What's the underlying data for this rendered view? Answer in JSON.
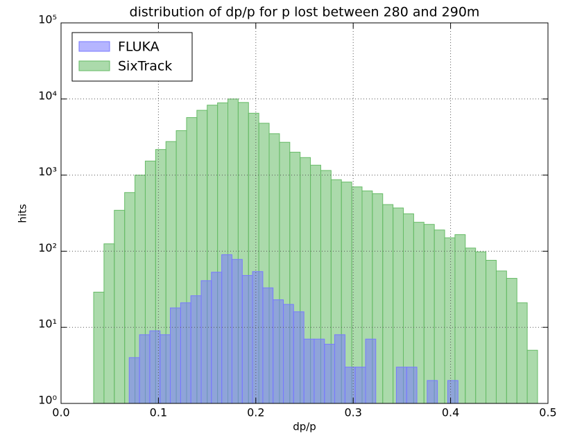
{
  "chart_data": {
    "type": "histogram",
    "title": "distribution of dp/p for p lost between 280 and 290m",
    "x_label": "dp/p",
    "y_label": "hits",
    "xlim": [
      0,
      0.5
    ],
    "ylim": [
      1,
      100000
    ],
    "log_y": true,
    "grid": true,
    "legend": "upper left",
    "xticks": [
      {
        "value": 0,
        "label": "0.0"
      },
      0.1,
      0.2,
      0.3,
      0.4,
      0.5
    ],
    "yticks": [
      {
        "value": 1,
        "label": "10⁰"
      },
      {
        "value": 10,
        "label": "10¹"
      },
      {
        "value": 100,
        "label": "10²"
      },
      {
        "value": 1000,
        "label": "10³"
      },
      {
        "value": 10000,
        "label": "10⁴"
      },
      {
        "value": 100000,
        "label": "10⁵"
      }
    ],
    "series": [
      {
        "name": "FLUKA",
        "color": "#7878ff",
        "bins": [
          0.07,
          0.0806,
          0.0911,
          0.1017,
          0.1122,
          0.1228,
          0.1333,
          0.1439,
          0.1544,
          0.165,
          0.1755,
          0.1861,
          0.1966,
          0.2072,
          0.2177,
          0.2283,
          0.2388,
          0.2494,
          0.2599,
          0.2705,
          0.281,
          0.2916,
          0.3021,
          0.3127,
          0.3232,
          0.3338,
          0.3443,
          0.3549,
          0.3654,
          0.376,
          0.3865,
          0.3971,
          0.4076
        ],
        "values": [
          4,
          8,
          9,
          8,
          18,
          21,
          26,
          41,
          53,
          90,
          78,
          48,
          54,
          33,
          23,
          20,
          16,
          7,
          7,
          6,
          8,
          3,
          3,
          7,
          0,
          0,
          3,
          3,
          0,
          2,
          0,
          2
        ]
      },
      {
        "name": "SixTrack",
        "color": "#66bb66",
        "bins": [
          0.0335,
          0.0441,
          0.0547,
          0.0653,
          0.0759,
          0.0865,
          0.0971,
          0.1077,
          0.1183,
          0.1289,
          0.1395,
          0.1501,
          0.1607,
          0.1713,
          0.1819,
          0.1925,
          0.2031,
          0.2137,
          0.2243,
          0.2349,
          0.2455,
          0.2561,
          0.2667,
          0.2773,
          0.2879,
          0.2985,
          0.3091,
          0.3197,
          0.3303,
          0.3409,
          0.3515,
          0.3621,
          0.3727,
          0.3833,
          0.3939,
          0.4045,
          0.4151,
          0.4257,
          0.4363,
          0.4469,
          0.4575,
          0.4681,
          0.4787,
          0.4893
        ],
        "values": [
          29,
          125,
          345,
          590,
          1000,
          1530,
          2170,
          2760,
          3840,
          5700,
          7100,
          8300,
          8900,
          10000,
          9000,
          6500,
          4800,
          3500,
          2700,
          2000,
          1700,
          1350,
          1150,
          870,
          810,
          700,
          620,
          570,
          410,
          370,
          310,
          240,
          225,
          190,
          150,
          165,
          110,
          98,
          76,
          55,
          44,
          21,
          5
        ]
      }
    ]
  }
}
